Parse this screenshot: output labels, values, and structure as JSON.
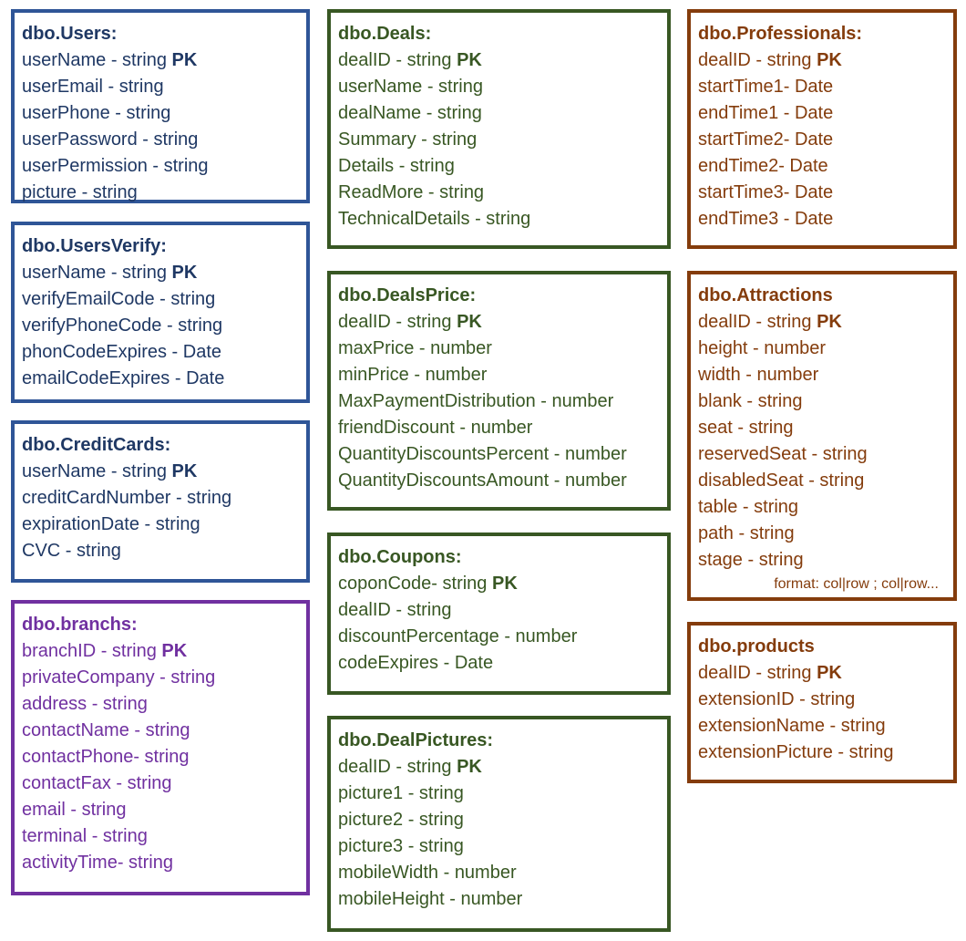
{
  "tables": [
    {
      "title": "dbo.Users:",
      "color": "#1f3864",
      "border": "#2f5597",
      "fields": [
        {
          "text": "userName - string",
          "pk": "PK"
        },
        {
          "text": "userEmail - string",
          "pk": ""
        },
        {
          "text": "userPhone - string",
          "pk": ""
        },
        {
          "text": "userPassword - string",
          "pk": ""
        },
        {
          "text": "userPermission - string",
          "pk": ""
        },
        {
          "text": "picture - string",
          "pk": ""
        }
      ],
      "note": ""
    },
    {
      "title": "dbo.UsersVerify:",
      "color": "#1f3864",
      "border": "#2f5597",
      "fields": [
        {
          "text": "userName - string",
          "pk": "PK"
        },
        {
          "text": "verifyEmailCode - string",
          "pk": ""
        },
        {
          "text": "verifyPhoneCode - string",
          "pk": ""
        },
        {
          "text": "phonCodeExpires - Date",
          "pk": ""
        },
        {
          "text": "emailCodeExpires - Date",
          "pk": ""
        }
      ],
      "note": ""
    },
    {
      "title": "dbo.CreditCards:",
      "color": "#1f3864",
      "border": "#2f5597",
      "fields": [
        {
          "text": "userName - string",
          "pk": "PK"
        },
        {
          "text": "creditCardNumber - string",
          "pk": ""
        },
        {
          "text": "expirationDate - string",
          "pk": ""
        },
        {
          "text": "CVC - string",
          "pk": ""
        }
      ],
      "note": ""
    },
    {
      "title": "dbo.branchs:",
      "color": "#7030a0",
      "border": "#7030a0",
      "fields": [
        {
          "text": "branchID - string",
          "pk": "PK"
        },
        {
          "text": "privateCompany - string",
          "pk": ""
        },
        {
          "text": "address - string",
          "pk": ""
        },
        {
          "text": "contactName - string",
          "pk": ""
        },
        {
          "text": "contactPhone- string",
          "pk": ""
        },
        {
          "text": "contactFax - string",
          "pk": ""
        },
        {
          "text": "email - string",
          "pk": ""
        },
        {
          "text": "terminal - string",
          "pk": ""
        },
        {
          "text": "activityTime- string",
          "pk": ""
        }
      ],
      "note": ""
    },
    {
      "title": "dbo.Deals:",
      "color": "#385723",
      "border": "#385723",
      "fields": [
        {
          "text": "dealID - string",
          "pk": "PK"
        },
        {
          "text": "userName - string",
          "pk": ""
        },
        {
          "text": "dealName - string",
          "pk": ""
        },
        {
          "text": "Summary - string",
          "pk": ""
        },
        {
          "text": "Details - string",
          "pk": ""
        },
        {
          "text": "ReadMore - string",
          "pk": ""
        },
        {
          "text": "TechnicalDetails - string",
          "pk": ""
        }
      ],
      "note": ""
    },
    {
      "title": "dbo.DealsPrice:",
      "color": "#385723",
      "border": "#385723",
      "fields": [
        {
          "text": "dealID - string",
          "pk": "PK"
        },
        {
          "text": "maxPrice - number",
          "pk": ""
        },
        {
          "text": "minPrice - number",
          "pk": ""
        },
        {
          "text": "MaxPaymentDistribution - number",
          "pk": ""
        },
        {
          "text": "friendDiscount - number",
          "pk": ""
        },
        {
          "text": "QuantityDiscountsPercent - number",
          "pk": ""
        },
        {
          "text": "QuantityDiscountsAmount - number",
          "pk": ""
        }
      ],
      "note": ""
    },
    {
      "title": "dbo.Coupons:",
      "color": "#385723",
      "border": "#385723",
      "fields": [
        {
          "text": "coponCode- string",
          "pk": "PK"
        },
        {
          "text": "dealID - string",
          "pk": ""
        },
        {
          "text": "discountPercentage - number",
          "pk": ""
        },
        {
          "text": "codeExpires - Date",
          "pk": ""
        }
      ],
      "note": ""
    },
    {
      "title": "dbo.DealPictures:",
      "color": "#385723",
      "border": "#385723",
      "fields": [
        {
          "text": "dealID - string",
          "pk": "PK"
        },
        {
          "text": "picture1 - string",
          "pk": ""
        },
        {
          "text": "picture2 - string",
          "pk": ""
        },
        {
          "text": "picture3 - string",
          "pk": ""
        },
        {
          "text": "mobileWidth - number",
          "pk": ""
        },
        {
          "text": "mobileHeight - number",
          "pk": ""
        }
      ],
      "note": ""
    },
    {
      "title": "dbo.Professionals:",
      "color": "#843c0c",
      "border": "#843c0c",
      "fields": [
        {
          "text": "dealID - string",
          "pk": "PK"
        },
        {
          "text": "startTime1- Date",
          "pk": ""
        },
        {
          "text": "endTime1 - Date",
          "pk": ""
        },
        {
          "text": "startTime2- Date",
          "pk": ""
        },
        {
          "text": "endTime2- Date",
          "pk": ""
        },
        {
          "text": "startTime3- Date",
          "pk": ""
        },
        {
          "text": "endTime3 - Date",
          "pk": ""
        }
      ],
      "note": ""
    },
    {
      "title": "dbo.Attractions",
      "color": "#843c0c",
      "border": "#843c0c",
      "fields": [
        {
          "text": "dealID - string",
          "pk": "PK"
        },
        {
          "text": "height - number",
          "pk": ""
        },
        {
          "text": "width - number",
          "pk": ""
        },
        {
          "text": "blank - string",
          "pk": ""
        },
        {
          "text": "seat - string",
          "pk": ""
        },
        {
          "text": "reservedSeat - string",
          "pk": ""
        },
        {
          "text": "disabledSeat - string",
          "pk": ""
        },
        {
          "text": "table - string",
          "pk": ""
        },
        {
          "text": "path - string",
          "pk": ""
        },
        {
          "text": "stage - string",
          "pk": ""
        }
      ],
      "note": "format: col|row ; col|row..."
    },
    {
      "title": "dbo.products",
      "color": "#843c0c",
      "border": "#843c0c",
      "fields": [
        {
          "text": "dealID - string",
          "pk": "PK"
        },
        {
          "text": "extensionID - string",
          "pk": ""
        },
        {
          "text": "extensionName - string",
          "pk": ""
        },
        {
          "text": "extensionPicture - string",
          "pk": ""
        }
      ],
      "note": ""
    }
  ]
}
